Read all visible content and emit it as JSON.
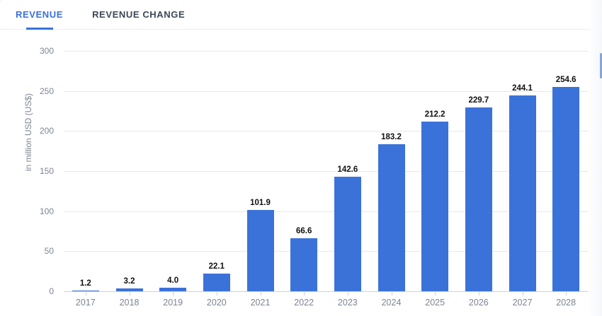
{
  "tabs": [
    {
      "label": "REVENUE",
      "active": true
    },
    {
      "label": "REVENUE CHANGE",
      "active": false
    }
  ],
  "colors": {
    "bar": "#3b72d9",
    "active_tab": "#3a70dd",
    "inactive_tab": "#3c4758",
    "axis_text": "#7d8491",
    "gridline": "#e8e8ea",
    "baseline": "#c9d2e0",
    "value_label": "#111111",
    "scrollbar_thumb": "#84a5d9"
  },
  "chart_data": {
    "type": "bar",
    "title": "",
    "categories": [
      "2017",
      "2018",
      "2019",
      "2020",
      "2021",
      "2022",
      "2023",
      "2024",
      "2025",
      "2026",
      "2027",
      "2028"
    ],
    "values": [
      1.2,
      3.2,
      4.0,
      22.1,
      101.9,
      66.6,
      142.6,
      183.2,
      212.2,
      229.7,
      244.1,
      254.6
    ],
    "value_labels": [
      "1.2",
      "3.2",
      "4.0",
      "22.1",
      "101.9",
      "66.6",
      "142.6",
      "183.2",
      "212.2",
      "229.7",
      "244.1",
      "254.6"
    ],
    "xlabel": "",
    "ylabel": "in million USD (US$)",
    "yticks": [
      0,
      50,
      100,
      150,
      200,
      250,
      300
    ],
    "ylim": [
      0,
      300
    ],
    "grid": true,
    "legend": "none",
    "value_labels_shown": true
  }
}
